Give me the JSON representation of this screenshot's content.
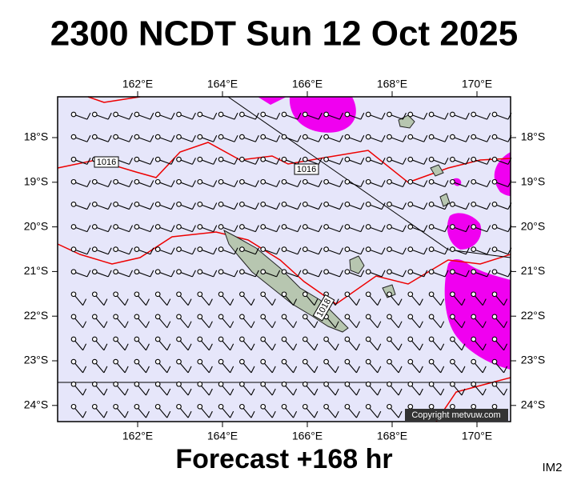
{
  "header": {
    "title": "2300 NCDT Sun 12 Oct 2025"
  },
  "map": {
    "lon_labels": [
      "162°E",
      "164°E",
      "166°E",
      "168°E",
      "170°E"
    ],
    "lat_labels": [
      "18°S",
      "19°S",
      "20°S",
      "21°S",
      "22°S",
      "23°S",
      "24°S"
    ],
    "isobar_labels": [
      "1016",
      "1016",
      "1018"
    ],
    "copyright": "Copyright metvuw.com"
  },
  "footer": {
    "forecast": "Forecast +168 hr",
    "image_id": "IM2"
  }
}
